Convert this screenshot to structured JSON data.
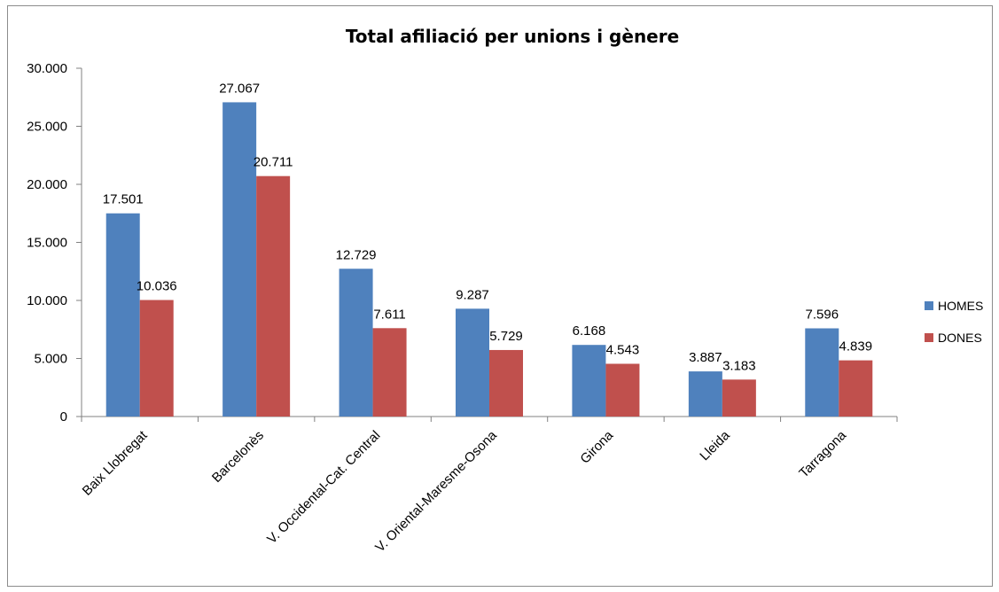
{
  "chart_data": {
    "type": "bar",
    "title": "Total afiliació per unions i gènere",
    "categories": [
      "Baix Llobregat",
      "Barcelonès",
      "V. Occidental-Cat. Central",
      "V. Oriental-Maresme-Osona",
      "Girona",
      "Lleida",
      "Tarragona"
    ],
    "series": [
      {
        "name": "HOMES",
        "color": "#4f81bd",
        "values": [
          17501,
          27067,
          12729,
          9287,
          6168,
          3887,
          7596
        ],
        "labels": [
          "17.501",
          "27.067",
          "12.729",
          "9.287",
          "6.168",
          "3.887",
          "7.596"
        ]
      },
      {
        "name": "DONES",
        "color": "#c0504d",
        "values": [
          10036,
          20711,
          7611,
          5729,
          4543,
          3183,
          4839
        ],
        "labels": [
          "10.036",
          "20.711",
          "7.611",
          "5.729",
          "4.543",
          "3.183",
          "4.839"
        ]
      }
    ],
    "ylim": [
      0,
      30000
    ],
    "yticks": [
      0,
      5000,
      10000,
      15000,
      20000,
      25000,
      30000
    ],
    "ytick_labels": [
      "0",
      "5.000",
      "10.000",
      "15.000",
      "20.000",
      "25.000",
      "30.000"
    ],
    "grid": false,
    "legend_position": "right"
  }
}
